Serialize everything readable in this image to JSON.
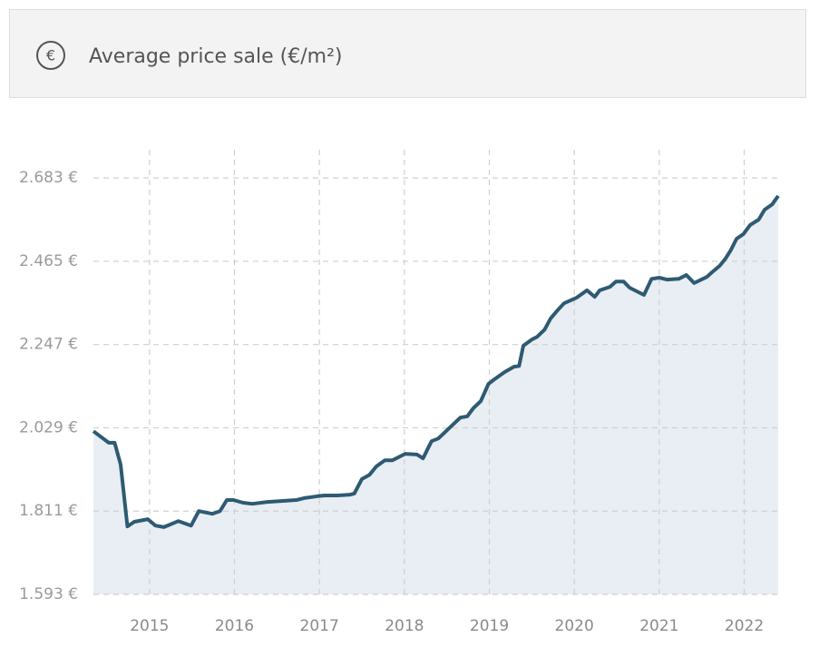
{
  "header": {
    "icon": "€",
    "title": "Average price sale (€/m²)"
  },
  "chart_data": {
    "type": "area",
    "x": [
      2014.34,
      2014.52,
      2014.59,
      2014.66,
      2014.74,
      2014.82,
      2014.98,
      2015.07,
      2015.17,
      2015.34,
      2015.49,
      2015.58,
      2015.74,
      2015.83,
      2015.91,
      2015.99,
      2016.1,
      2016.21,
      2016.39,
      2016.73,
      2016.82,
      2016.98,
      2017.06,
      2017.21,
      2017.36,
      2017.41,
      2017.5,
      2017.59,
      2017.67,
      2017.77,
      2017.86,
      2018.01,
      2018.15,
      2018.22,
      2018.32,
      2018.4,
      2018.56,
      2018.66,
      2018.74,
      2018.81,
      2018.9,
      2018.99,
      2019.06,
      2019.18,
      2019.29,
      2019.35,
      2019.4,
      2019.5,
      2019.56,
      2019.65,
      2019.72,
      2019.8,
      2019.88,
      2020.03,
      2020.15,
      2020.24,
      2020.3,
      2020.42,
      2020.49,
      2020.58,
      2020.65,
      2020.82,
      2020.91,
      2021.0,
      2021.09,
      2021.23,
      2021.32,
      2021.41,
      2021.56,
      2021.62,
      2021.71,
      2021.78,
      2021.84,
      2021.91,
      2021.99,
      2022.07,
      2022.17,
      2022.24,
      2022.33,
      2022.4
    ],
    "values": [
      2020,
      1990,
      1990,
      1933,
      1771,
      1783,
      1790,
      1773,
      1769,
      1785,
      1773,
      1811,
      1804,
      1811,
      1840,
      1840,
      1833,
      1830,
      1835,
      1840,
      1845,
      1850,
      1852,
      1852,
      1854,
      1857,
      1895,
      1906,
      1928,
      1944,
      1944,
      1961,
      1959,
      1949,
      1994,
      2001,
      2035,
      2056,
      2059,
      2080,
      2099,
      2144,
      2156,
      2175,
      2189,
      2191,
      2244,
      2260,
      2267,
      2286,
      2315,
      2336,
      2355,
      2370,
      2389,
      2372,
      2389,
      2398,
      2412,
      2412,
      2396,
      2377,
      2419,
      2422,
      2417,
      2419,
      2429,
      2408,
      2424,
      2436,
      2453,
      2472,
      2493,
      2524,
      2536,
      2560,
      2574,
      2600,
      2614,
      2636
    ],
    "color": "#2e5a73",
    "fill": "#e8eef3",
    "xlim": [
      2014.34,
      2022.4
    ],
    "xticks": [
      2015,
      2016,
      2017,
      2018,
      2019,
      2020,
      2021,
      2022
    ],
    "ylim": [
      1593,
      2757
    ],
    "yticks": [
      {
        "value": 1593,
        "label": "1.593 €"
      },
      {
        "value": 1811,
        "label": "1.811 €"
      },
      {
        "value": 2029,
        "label": "2.029 €"
      },
      {
        "value": 2247,
        "label": "2.247 €"
      },
      {
        "value": 2465,
        "label": "2.465 €"
      },
      {
        "value": 2683,
        "label": "2.683 €"
      }
    ],
    "grid": true
  }
}
